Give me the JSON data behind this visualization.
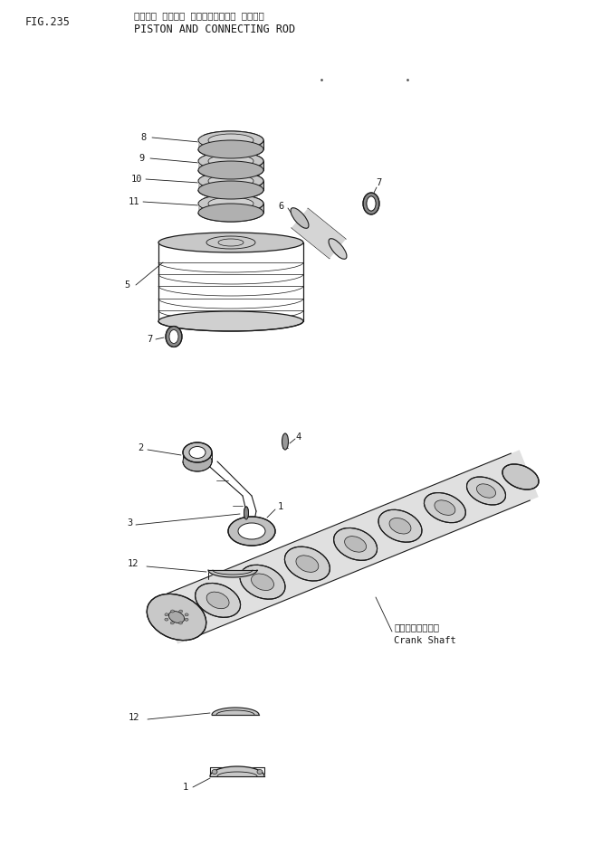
{
  "fig_number": "FIG.235",
  "title_jp": "ピストン オヨビー コネクティング・ ロット・",
  "title_en": "PISTON AND CONNECTING ROD",
  "bg_color": "#ffffff",
  "line_color": "#1a1a1a",
  "label_color": "#1a1a1a",
  "crankshaft_label_jp": "クランクシャフト",
  "crankshaft_label_en": "Crank Shaft",
  "font_size_fig": 8.5,
  "font_size_title": 8.5,
  "font_size_label": 7.5
}
